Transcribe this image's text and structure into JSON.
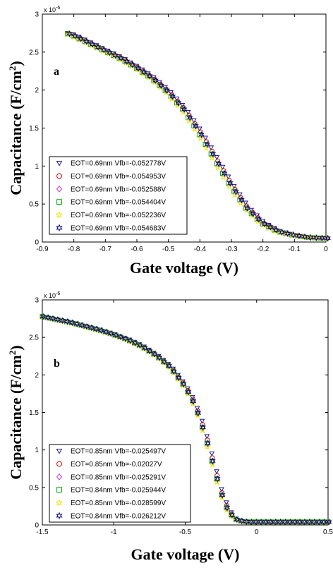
{
  "chart_data": [
    {
      "type": "scatter",
      "panel_label": "a",
      "xlabel": "Gate voltage (V)",
      "ylabel": "Capacitance (F/cm",
      "ylabel_sup": "2",
      "ylabel_close": ")",
      "y_exponent_base": "x 10",
      "y_exponent_power": "-6",
      "xlim": [
        -0.9,
        0
      ],
      "ylim": [
        0,
        3
      ],
      "xticks": [
        "-0.9",
        "-0.8",
        "-0.7",
        "-0.6",
        "-0.5",
        "-0.4",
        "-0.3",
        "-0.2",
        "-0.1",
        "0"
      ],
      "yticks": [
        "0",
        "0.5",
        "1",
        "1.5",
        "2",
        "2.5",
        "3"
      ],
      "legend_position": "lower-left",
      "series": [
        {
          "name": "EOT=0.69nm Vfb=-0.052778V",
          "marker": "triangle-down",
          "color": "#1a1a8c",
          "shift": 0.006
        },
        {
          "name": "EOT=0.69nm Vfb=-0.054953V",
          "marker": "circle",
          "color": "#cc0000",
          "shift": 0.002
        },
        {
          "name": "EOT=0.69nm Vfb=-0.052588V",
          "marker": "diamond",
          "color": "#cc33cc",
          "shift": -0.002
        },
        {
          "name": "EOT=0.69nm Vfb=-0.054404V",
          "marker": "square",
          "color": "#00aa00",
          "shift": -0.006
        },
        {
          "name": "EOT=0.69nm Vfb=-0.052236V",
          "marker": "star",
          "color": "#e6e600",
          "shift": -0.01
        },
        {
          "name": "EOT=0.69nm Vfb=-0.054683V",
          "marker": "hexagram",
          "color": "#000080",
          "shift": 0.0
        }
      ],
      "curve": {
        "x": [
          -0.82,
          -0.8,
          -0.75,
          -0.7,
          -0.65,
          -0.6,
          -0.55,
          -0.5,
          -0.45,
          -0.4,
          -0.35,
          -0.3,
          -0.25,
          -0.2,
          -0.15,
          -0.1,
          -0.05,
          0
        ],
        "y": [
          2.75,
          2.72,
          2.62,
          2.52,
          2.42,
          2.3,
          2.16,
          1.98,
          1.75,
          1.45,
          1.1,
          0.75,
          0.45,
          0.25,
          0.14,
          0.09,
          0.06,
          0.05
        ]
      }
    },
    {
      "type": "scatter",
      "panel_label": "b",
      "xlabel": "Gate voltage (V)",
      "ylabel": "Capacitance (F/cm",
      "ylabel_sup": "2",
      "ylabel_close": ")",
      "y_exponent_base": "x 10",
      "y_exponent_power": "-6",
      "xlim": [
        -1.5,
        0.5
      ],
      "ylim": [
        0,
        3
      ],
      "xticks": [
        "-1.5",
        "-1",
        "-0.5",
        "0",
        "0.5"
      ],
      "yticks": [
        "0",
        "0.5",
        "1",
        "1.5",
        "2",
        "2.5",
        "3"
      ],
      "legend_position": "lower-left",
      "series": [
        {
          "name": "EOT=0.85nm Vfb=-0.025497V",
          "marker": "triangle-down",
          "color": "#1a1a8c",
          "shift": 0.008
        },
        {
          "name": "EOT=0.85nm Vfb=-0.02027V",
          "marker": "circle",
          "color": "#cc0000",
          "shift": 0.003
        },
        {
          "name": "EOT=0.85nm Vfb=-0.025291V",
          "marker": "diamond",
          "color": "#cc33cc",
          "shift": -0.002
        },
        {
          "name": "EOT=0.84nm Vfb=-0.025944V",
          "marker": "square",
          "color": "#00aa00",
          "shift": -0.006
        },
        {
          "name": "EOT=0.85nm Vfb=-0.028599V",
          "marker": "star",
          "color": "#e6e600",
          "shift": -0.01
        },
        {
          "name": "EOT=0.84nm Vfb=-0.026212V",
          "marker": "hexagram",
          "color": "#000080",
          "shift": 0.0
        }
      ],
      "curve": {
        "x": [
          -1.5,
          -1.4,
          -1.3,
          -1.2,
          -1.1,
          -1.0,
          -0.9,
          -0.8,
          -0.7,
          -0.6,
          -0.5,
          -0.45,
          -0.4,
          -0.35,
          -0.3,
          -0.25,
          -0.2,
          -0.15,
          -0.1,
          -0.05,
          0,
          0.1,
          0.2,
          0.3,
          0.4,
          0.5
        ],
        "y": [
          2.78,
          2.74,
          2.7,
          2.65,
          2.6,
          2.54,
          2.47,
          2.38,
          2.26,
          2.1,
          1.85,
          1.68,
          1.45,
          1.15,
          0.8,
          0.45,
          0.2,
          0.08,
          0.05,
          0.04,
          0.04,
          0.04,
          0.04,
          0.04,
          0.04,
          0.04
        ]
      }
    }
  ]
}
